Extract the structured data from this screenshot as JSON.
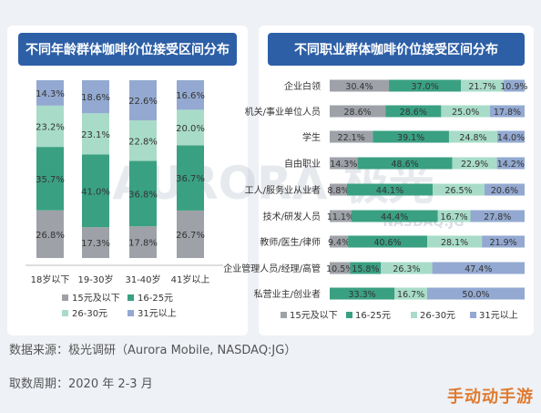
{
  "colors": {
    "c1": "#9ea2a8",
    "c2": "#3aa082",
    "c3": "#a8dcc8",
    "c4": "#93a9d1",
    "title_bg": "#2d5fa6"
  },
  "footer": {
    "source": "数据来源：极光调研（Aurora Mobile, NASDAQ:JG）",
    "period": "取数周期：2020 年 2-3 月"
  },
  "watermark": {
    "text": "AURORA 极光",
    "nasdaq": "NASDAQ:JG",
    "site": "手动动手游"
  },
  "chart_data": [
    {
      "type": "bar",
      "orientation": "vertical-stacked-100",
      "title": "不同年龄群体咖啡价位接受区间分布",
      "categories": [
        "18岁以下",
        "19-30岁",
        "31-40岁",
        "41岁以上"
      ],
      "series": [
        {
          "name": "15元及以下",
          "color": "#9ea2a8",
          "values": [
            26.8,
            17.3,
            17.8,
            26.7
          ]
        },
        {
          "name": "16-25元",
          "color": "#3aa082",
          "values": [
            35.7,
            41.0,
            36.8,
            36.7
          ]
        },
        {
          "name": "26-30元",
          "color": "#a8dcc8",
          "values": [
            23.2,
            23.1,
            22.8,
            20.0
          ]
        },
        {
          "name": "31元以上",
          "color": "#93a9d1",
          "values": [
            14.3,
            18.6,
            22.6,
            16.6
          ]
        }
      ],
      "legend_position": "bottom"
    },
    {
      "type": "bar",
      "orientation": "horizontal-stacked-100",
      "title": "不同职业群体咖啡价位接受区间分布",
      "categories": [
        "企业白领",
        "机关/事业单位人员",
        "学生",
        "自由职业",
        "工人/服务业从业者",
        "技术/研发人员",
        "教师/医生/律师",
        "企业管理人员/经理/高管",
        "私营业主/创业者"
      ],
      "series": [
        {
          "name": "15元及以下",
          "color": "#9ea2a8",
          "values": [
            30.4,
            28.6,
            22.1,
            14.3,
            8.8,
            11.1,
            9.4,
            10.5,
            0
          ]
        },
        {
          "name": "16-25元",
          "color": "#3aa082",
          "values": [
            37.0,
            28.6,
            39.1,
            48.6,
            44.1,
            44.4,
            40.6,
            15.8,
            33.3
          ]
        },
        {
          "name": "26-30元",
          "color": "#a8dcc8",
          "values": [
            21.7,
            25.0,
            24.8,
            22.9,
            26.5,
            16.7,
            28.1,
            26.3,
            16.7
          ]
        },
        {
          "name": "31元以上",
          "color": "#93a9d1",
          "values": [
            10.9,
            17.8,
            14.0,
            14.2,
            20.6,
            27.8,
            21.9,
            47.4,
            50.0
          ]
        }
      ],
      "legend_position": "bottom"
    }
  ]
}
